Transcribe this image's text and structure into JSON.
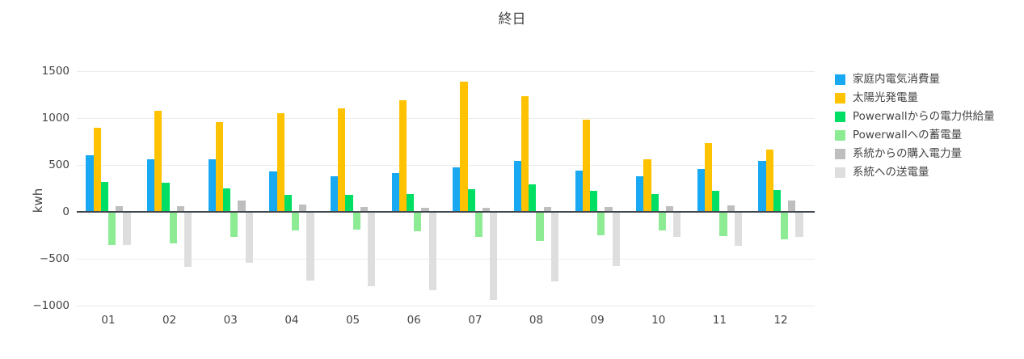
{
  "chart_data": {
    "type": "bar",
    "title": "終日",
    "ylabel": "kwh",
    "xlabel": "",
    "ylim": [
      -1000,
      1500
    ],
    "y_ticks": [
      1500,
      1000,
      500,
      0,
      -500,
      -1000
    ],
    "grid": true,
    "legend_position": "right",
    "categories": [
      "01",
      "02",
      "03",
      "04",
      "05",
      "06",
      "07",
      "08",
      "09",
      "10",
      "11",
      "12"
    ],
    "series": [
      {
        "name": "家庭内電気消費量",
        "color": "#18A9F2",
        "values": [
          600,
          560,
          560,
          430,
          380,
          410,
          470,
          540,
          440,
          380,
          460,
          540
        ]
      },
      {
        "name": "太陽光発電量",
        "color": "#FFC200",
        "values": [
          900,
          1080,
          960,
          1050,
          1100,
          1190,
          1390,
          1230,
          980,
          560,
          730,
          660
        ]
      },
      {
        "name": "Powerwallからの電力供給量",
        "color": "#00DF64",
        "values": [
          320,
          310,
          250,
          180,
          180,
          190,
          240,
          290,
          220,
          190,
          220,
          230
        ]
      },
      {
        "name": "Powerwallへの蓄電量",
        "color": "#8DEB94",
        "values": [
          -350,
          -340,
          -270,
          -200,
          -190,
          -210,
          -270,
          -310,
          -250,
          -200,
          -260,
          -290
        ]
      },
      {
        "name": "系統からの購入電力量",
        "color": "#BEBEBE",
        "values": [
          60,
          60,
          120,
          80,
          50,
          40,
          40,
          50,
          50,
          60,
          70,
          120
        ]
      },
      {
        "name": "系統への送電量",
        "color": "#DEDEDE",
        "values": [
          -350,
          -590,
          -540,
          -730,
          -790,
          -840,
          -940,
          -740,
          -580,
          -270,
          -360,
          -270
        ]
      }
    ]
  }
}
